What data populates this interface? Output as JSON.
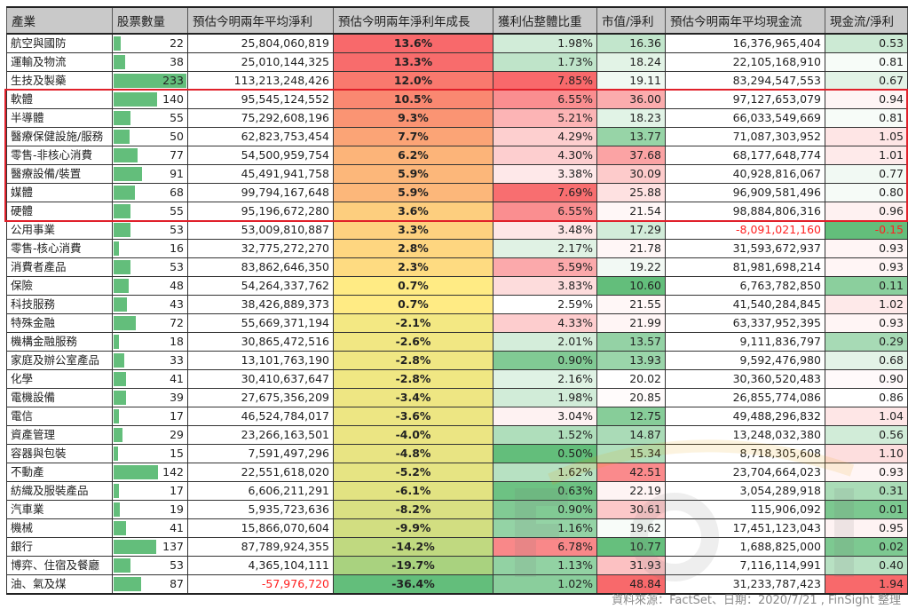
{
  "headers": [
    "產業",
    "股票數量",
    "預估今明兩年平均淨利",
    "預估今明兩年淨利年成長",
    "獲利佔整體比重",
    "市值/淨利",
    "預估今明兩年平均現金流",
    "現金流/淨利"
  ],
  "rows": [
    [
      "航空與國防",
      22,
      "25,804,060,819",
      "13.6%",
      "1.98%",
      "16.36",
      "16,376,965,404",
      "0.53"
    ],
    [
      "運輸及物流",
      38,
      "25,010,144,325",
      "13.3%",
      "1.73%",
      "18.24",
      "22,105,168,910",
      "0.81"
    ],
    [
      "生技及製藥",
      233,
      "113,213,248,426",
      "12.0%",
      "7.85%",
      "19.11",
      "83,294,547,553",
      "0.67"
    ],
    [
      "軟體",
      140,
      "95,545,124,552",
      "10.5%",
      "6.55%",
      "36.00",
      "97,127,653,079",
      "0.94"
    ],
    [
      "半導體",
      55,
      "75,292,608,196",
      "9.3%",
      "5.21%",
      "18.23",
      "66,033,549,669",
      "0.81"
    ],
    [
      "醫療保健設施/服務",
      50,
      "62,823,753,454",
      "7.7%",
      "4.29%",
      "13.77",
      "71,087,303,952",
      "1.05"
    ],
    [
      "零售-非核心消費",
      77,
      "54,500,959,754",
      "6.2%",
      "4.30%",
      "37.68",
      "68,177,648,774",
      "1.01"
    ],
    [
      "醫療設備/裝置",
      91,
      "45,491,941,758",
      "5.9%",
      "3.38%",
      "30.09",
      "40,928,816,067",
      "0.77"
    ],
    [
      "媒體",
      68,
      "99,794,167,648",
      "5.9%",
      "7.69%",
      "25.88",
      "96,909,581,496",
      "0.80"
    ],
    [
      "硬體",
      55,
      "95,196,672,280",
      "3.6%",
      "6.55%",
      "21.54",
      "98,884,806,316",
      "0.96"
    ],
    [
      "公用事業",
      53,
      "53,009,810,887",
      "3.3%",
      "3.48%",
      "17.29",
      "-8,091,021,160",
      "-0.15"
    ],
    [
      "零售-核心消費",
      16,
      "32,775,272,270",
      "2.8%",
      "2.17%",
      "21.78",
      "31,593,672,937",
      "0.93"
    ],
    [
      "消費者產品",
      53,
      "83,862,646,350",
      "2.3%",
      "5.59%",
      "19.22",
      "81,981,698,214",
      "0.93"
    ],
    [
      "保險",
      48,
      "54,264,337,762",
      "0.7%",
      "3.83%",
      "10.60",
      "6,763,782,850",
      "0.11"
    ],
    [
      "科技服務",
      43,
      "38,426,889,373",
      "0.7%",
      "2.59%",
      "21.55",
      "41,540,284,845",
      "1.02"
    ],
    [
      "特殊金融",
      72,
      "55,669,371,194",
      "-2.1%",
      "4.33%",
      "21.99",
      "63,337,952,395",
      "0.93"
    ],
    [
      "機構金融服務",
      18,
      "30,865,472,516",
      "-2.6%",
      "2.01%",
      "13.57",
      "9,111,836,797",
      "0.29"
    ],
    [
      "家庭及辦公室產品",
      33,
      "13,101,763,190",
      "-2.8%",
      "0.90%",
      "13.93",
      "9,592,476,980",
      "0.68"
    ],
    [
      "化學",
      41,
      "30,410,637,647",
      "-2.8%",
      "2.16%",
      "20.02",
      "30,360,520,483",
      "0.90"
    ],
    [
      "電機設備",
      39,
      "27,675,356,209",
      "-3.4%",
      "1.98%",
      "20.85",
      "26,855,774,086",
      "0.86"
    ],
    [
      "電信",
      17,
      "46,524,784,017",
      "-3.6%",
      "3.04%",
      "12.75",
      "49,488,296,832",
      "1.04"
    ],
    [
      "資產管理",
      29,
      "23,266,163,501",
      "-4.0%",
      "1.52%",
      "14.87",
      "13,248,032,380",
      "0.56"
    ],
    [
      "容器與包裝",
      15,
      "7,591,497,296",
      "-4.8%",
      "0.50%",
      "15.34",
      "8,718,305,608",
      "1.10"
    ],
    [
      "不動產",
      142,
      "22,551,618,020",
      "-5.2%",
      "1.62%",
      "42.51",
      "23,704,664,023",
      "0.93"
    ],
    [
      "紡織及服裝產品",
      17,
      "6,606,211,291",
      "-6.1%",
      "0.63%",
      "22.19",
      "3,054,289,918",
      "0.31"
    ],
    [
      "汽車業",
      19,
      "5,935,723,636",
      "-8.2%",
      "0.90%",
      "30.61",
      "115,906,092",
      "0.01"
    ],
    [
      "機械",
      41,
      "15,866,070,604",
      "-9.9%",
      "1.16%",
      "19.62",
      "17,451,123,043",
      "0.95"
    ],
    [
      "銀行",
      137,
      "87,789,924,355",
      "-14.2%",
      "6.78%",
      "10.77",
      "1,688,825,000",
      "0.02"
    ],
    [
      "博弈、住宿及餐廳",
      53,
      "4,365,104,111",
      "-19.7%",
      "1.13%",
      "31.93",
      "7,116,114,991",
      "0.40"
    ],
    [
      "油、氣及煤",
      87,
      "-57,976,720",
      "-36.4%",
      "1.02%",
      "48.84",
      "31,233,787,423",
      "1.94"
    ]
  ],
  "colors": {
    "red": "#F8696B",
    "yellow": "#FFEB84",
    "green": "#63BE7B",
    "white": "#FFFFFF",
    "negative_text": "#FF2020",
    "highlight_border": "#E0202A"
  },
  "source_note": "資料來源：FactSet、日期：2020/7/21 , FinSight 整理",
  "watermark": "FinSight"
}
